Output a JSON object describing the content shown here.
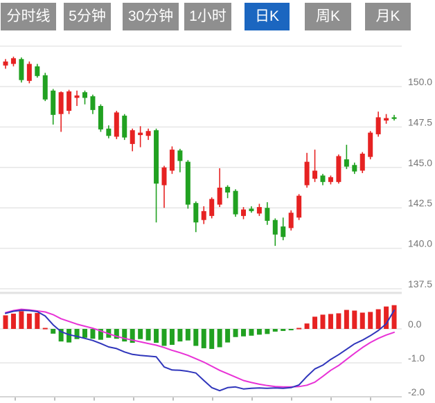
{
  "tabs": {
    "items": [
      {
        "label": "分时线",
        "active": false
      },
      {
        "label": "5分钟",
        "active": false
      },
      {
        "label": "30分钟",
        "active": false
      },
      {
        "label": "1小时",
        "active": false
      },
      {
        "label": "日K",
        "active": true
      },
      {
        "label": "周K",
        "active": false
      },
      {
        "label": "月K",
        "active": false
      }
    ],
    "active_bg": "#1b66c0",
    "inactive_bg": "#8f8f8f",
    "text_color": "#ffffff"
  },
  "chart_data": {
    "type": "candlestick+macd",
    "title": "",
    "legend": [],
    "price_panel": {
      "ylabel": "",
      "ylim": [
        137.0,
        153.0
      ],
      "grid": true,
      "gridline_prices": [
        152.5,
        150.0,
        147.5,
        145.0,
        142.5,
        140.0,
        137.5
      ],
      "axis_labels": [
        {
          "text": "150.0",
          "value": 150.0
        },
        {
          "text": "147.5",
          "value": 147.5
        },
        {
          "text": "145.0",
          "value": 145.0
        },
        {
          "text": "142.5",
          "value": 142.5
        },
        {
          "text": "140.0",
          "value": 140.0
        },
        {
          "text": "137.5",
          "value": 137.5
        }
      ],
      "candles_ohlc": [
        [
          151.3,
          151.7,
          151.1,
          151.55
        ],
        [
          151.4,
          151.85,
          151.25,
          151.75
        ],
        [
          151.7,
          151.8,
          150.25,
          150.4
        ],
        [
          150.35,
          151.55,
          150.2,
          151.4
        ],
        [
          151.25,
          151.4,
          150.55,
          150.65
        ],
        [
          150.7,
          150.85,
          149.1,
          149.2
        ],
        [
          149.75,
          149.85,
          147.65,
          148.25
        ],
        [
          148.3,
          149.7,
          147.2,
          149.65
        ],
        [
          148.5,
          149.8,
          148.3,
          149.7
        ],
        [
          149.3,
          149.75,
          148.8,
          149.45
        ],
        [
          149.65,
          149.75,
          148.9,
          149.3
        ],
        [
          149.4,
          149.5,
          148.3,
          148.55
        ],
        [
          148.8,
          148.9,
          147.2,
          147.35
        ],
        [
          147.4,
          147.6,
          146.8,
          146.95
        ],
        [
          146.9,
          148.5,
          146.75,
          148.4
        ],
        [
          148.2,
          148.3,
          146.7,
          146.85
        ],
        [
          146.45,
          147.4,
          146.0,
          147.3
        ],
        [
          147.0,
          147.55,
          146.25,
          147.15
        ],
        [
          146.95,
          147.4,
          146.7,
          147.25
        ],
        [
          147.3,
          147.4,
          141.6,
          144.0
        ],
        [
          143.9,
          145.1,
          142.5,
          145.0
        ],
        [
          144.8,
          146.3,
          144.6,
          146.1
        ],
        [
          146.05,
          146.15,
          144.7,
          145.4
        ],
        [
          145.35,
          145.45,
          142.45,
          142.7
        ],
        [
          142.8,
          142.9,
          141.0,
          141.6
        ],
        [
          141.75,
          142.6,
          141.5,
          142.3
        ],
        [
          142.0,
          143.15,
          141.85,
          143.05
        ],
        [
          142.7,
          144.95,
          142.55,
          143.75
        ],
        [
          143.8,
          143.9,
          143.1,
          143.45
        ],
        [
          143.55,
          143.65,
          141.95,
          142.1
        ],
        [
          142.0,
          142.55,
          141.8,
          142.4
        ],
        [
          142.45,
          142.6,
          142.2,
          142.3
        ],
        [
          142.15,
          142.75,
          142.0,
          142.55
        ],
        [
          142.5,
          142.85,
          141.45,
          141.7
        ],
        [
          141.75,
          141.85,
          140.15,
          140.85
        ],
        [
          141.35,
          141.9,
          140.5,
          140.7
        ],
        [
          141.25,
          142.35,
          141.1,
          142.2
        ],
        [
          141.9,
          143.35,
          141.75,
          143.25
        ],
        [
          143.9,
          145.9,
          143.75,
          145.35
        ],
        [
          144.3,
          146.1,
          144.1,
          144.8
        ],
        [
          144.5,
          144.6,
          143.9,
          144.1
        ],
        [
          144.1,
          144.5,
          143.95,
          144.4
        ],
        [
          144.1,
          145.8,
          144.0,
          145.7
        ],
        [
          145.5,
          146.4,
          144.9,
          145.05
        ],
        [
          145.15,
          145.3,
          144.6,
          144.75
        ],
        [
          144.8,
          145.95,
          144.65,
          145.85
        ],
        [
          145.65,
          147.25,
          145.5,
          147.15
        ],
        [
          147.05,
          148.45,
          146.9,
          148.1
        ],
        [
          147.9,
          148.3,
          147.7,
          148.05
        ],
        [
          148.1,
          148.25,
          147.9,
          148.0
        ]
      ]
    },
    "macd_panel": {
      "ylim": [
        -2.1,
        0.9
      ],
      "grid": true,
      "gridline_values": [
        0.0,
        -1.0
      ],
      "axis_labels": [
        {
          "text": "0.0",
          "value": 0.0
        },
        {
          "text": "-1.0",
          "value": -1.0
        },
        {
          "text": "-2.0",
          "value": -2.0
        }
      ],
      "histogram": [
        0.4,
        0.45,
        0.52,
        0.45,
        0.47,
        0.03,
        -0.14,
        -0.37,
        -0.4,
        -0.3,
        -0.26,
        -0.29,
        -0.32,
        -0.26,
        -0.29,
        -0.37,
        -0.41,
        -0.3,
        -0.34,
        -0.41,
        -0.5,
        -0.47,
        -0.37,
        -0.34,
        -0.5,
        -0.57,
        -0.59,
        -0.54,
        -0.4,
        -0.24,
        -0.22,
        -0.2,
        -0.17,
        -0.15,
        -0.08,
        -0.06,
        -0.04,
        0.03,
        0.16,
        0.36,
        0.42,
        0.44,
        0.46,
        0.56,
        0.54,
        0.48,
        0.5,
        0.58,
        0.66,
        0.7
      ],
      "dif": [
        0.46,
        0.52,
        0.55,
        0.54,
        0.51,
        0.38,
        0.12,
        -0.08,
        -0.17,
        -0.22,
        -0.28,
        -0.34,
        -0.43,
        -0.53,
        -0.58,
        -0.68,
        -0.75,
        -0.78,
        -0.8,
        -0.82,
        -1.12,
        -1.21,
        -1.22,
        -1.25,
        -1.3,
        -1.52,
        -1.73,
        -1.82,
        -1.73,
        -1.71,
        -1.77,
        -1.75,
        -1.74,
        -1.75,
        -1.74,
        -1.75,
        -1.73,
        -1.65,
        -1.4,
        -1.18,
        -1.07,
        -0.9,
        -0.76,
        -0.6,
        -0.44,
        -0.33,
        -0.2,
        -0.05,
        0.15,
        0.55
      ],
      "dea": [
        0.48,
        0.54,
        0.58,
        0.56,
        0.53,
        0.5,
        0.42,
        0.3,
        0.22,
        0.14,
        0.08,
        0.02,
        -0.06,
        -0.14,
        -0.22,
        -0.28,
        -0.33,
        -0.38,
        -0.43,
        -0.48,
        -0.55,
        -0.63,
        -0.7,
        -0.78,
        -0.88,
        -0.98,
        -1.1,
        -1.22,
        -1.32,
        -1.42,
        -1.52,
        -1.58,
        -1.63,
        -1.67,
        -1.7,
        -1.71,
        -1.71,
        -1.7,
        -1.66,
        -1.57,
        -1.4,
        -1.22,
        -1.08,
        -0.9,
        -0.72,
        -0.55,
        -0.4,
        -0.28,
        -0.18,
        -0.1
      ]
    },
    "colors": {
      "up_candle": "#e62222",
      "down_candle": "#21a121",
      "dif_line": "#2f35bb",
      "dea_line": "#e832d6",
      "gridline": "#e6e6e6",
      "panel_divider": "#e2e2e2",
      "axis_line": "#d5d5d5",
      "tick": "#a8a8a8",
      "axis_text": "#757575"
    }
  }
}
